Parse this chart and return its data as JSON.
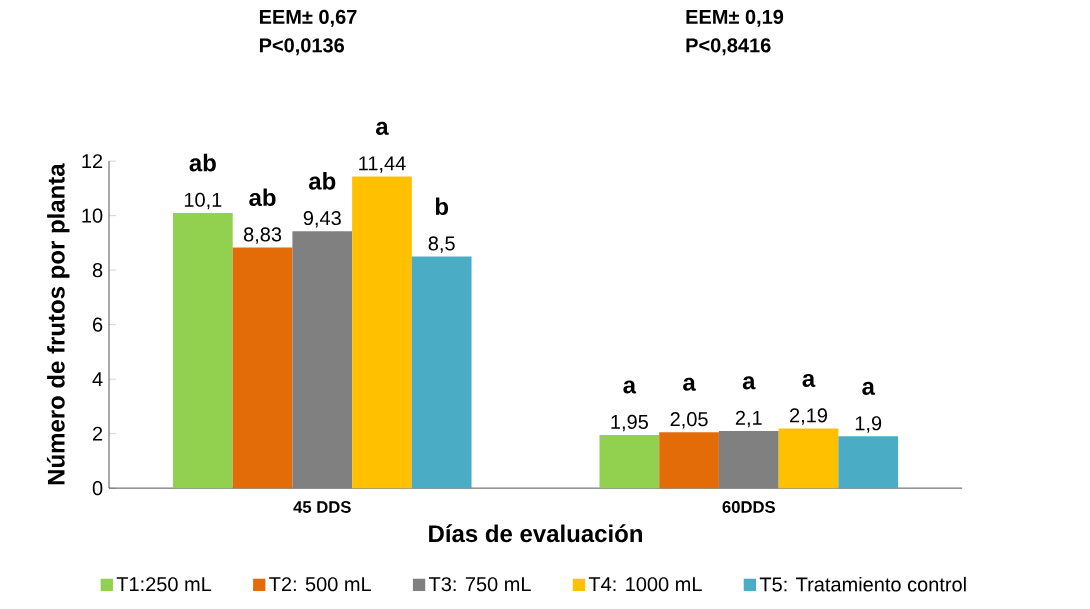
{
  "chart_data": {
    "type": "bar",
    "xlabel": "Días  de evaluación",
    "ylabel": "Número de frutos por planta",
    "categories": [
      "45 DDS",
      "60DDS"
    ],
    "series": [
      {
        "name": "T1:250 mL",
        "color": "#92d050",
        "values": [
          10.1,
          1.95
        ],
        "value_labels": [
          "10,1",
          "1,95"
        ]
      },
      {
        "name": "T2: 500 mL",
        "color": "#e36c09",
        "values": [
          8.83,
          2.05
        ],
        "value_labels": [
          "8,83",
          "2,05"
        ]
      },
      {
        "name": "T3: 750 mL",
        "color": "#808080",
        "values": [
          9.43,
          2.1
        ],
        "value_labels": [
          "9,43",
          "2,1"
        ]
      },
      {
        "name": "T4: 1000 mL",
        "color": "#ffc000",
        "values": [
          11.44,
          2.19
        ],
        "value_labels": [
          "11,44",
          "2,19"
        ]
      },
      {
        "name": "T5: Tratamiento control",
        "color": "#4bacc6",
        "values": [
          8.5,
          1.9
        ],
        "value_labels": [
          "8,5",
          "1,9"
        ]
      }
    ],
    "ylim": [
      0,
      12
    ],
    "yticks": [
      0,
      2,
      4,
      6,
      8,
      10,
      12
    ],
    "legend": "bottom",
    "grid": false,
    "annotations": [
      "EEM± 0,67",
      "P<0,0136",
      "EEM± 0,19",
      "P<0,8416",
      "ab",
      "ab",
      "ab",
      "a",
      "b",
      "a",
      "a",
      "a",
      "a",
      "a"
    ]
  }
}
